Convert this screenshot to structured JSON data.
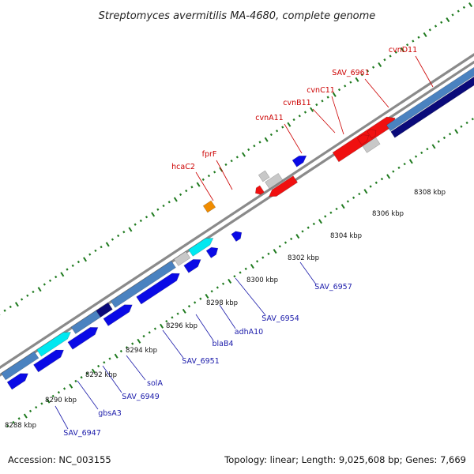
{
  "title": "Streptomyces avermitilis MA-4680, complete genome",
  "footer": {
    "accession": "Accession: NC_003155",
    "summary": "Topology: linear; Length: 9,025,608 bp; Genes: 7,669"
  },
  "colors": {
    "backbone": "#8a8a8a",
    "tick": "#1f7a1f",
    "red_label": "#cc0000",
    "blue_label": "#1a1aaa",
    "red": "#f01010",
    "blue": "#0a0ae6",
    "navy": "#0a0a7a",
    "steel": "#4a82c0",
    "cyan": "#00e8f0",
    "grey": "#c8c8c8",
    "orange": "#f08c00"
  },
  "ticks": [
    "8288 kbp",
    "8290 kbp",
    "8292 kbp",
    "8294 kbp",
    "8296 kbp",
    "8298 kbp",
    "8300 kbp",
    "8302 kbp",
    "8304 kbp",
    "8306 kbp",
    "8308 kbp"
  ],
  "top_labels": [
    "hcaC2",
    "fprF",
    "cvnA11",
    "cvnB11",
    "cvnC11",
    "SAV_6961",
    "cvnD11"
  ],
  "bottom_labels": [
    "SAV_6947",
    "gbsA3",
    "SAV_6949",
    "solA",
    "SAV_6951",
    "blaB4",
    "adhA10",
    "SAV_6954",
    "SAV_6957"
  ]
}
